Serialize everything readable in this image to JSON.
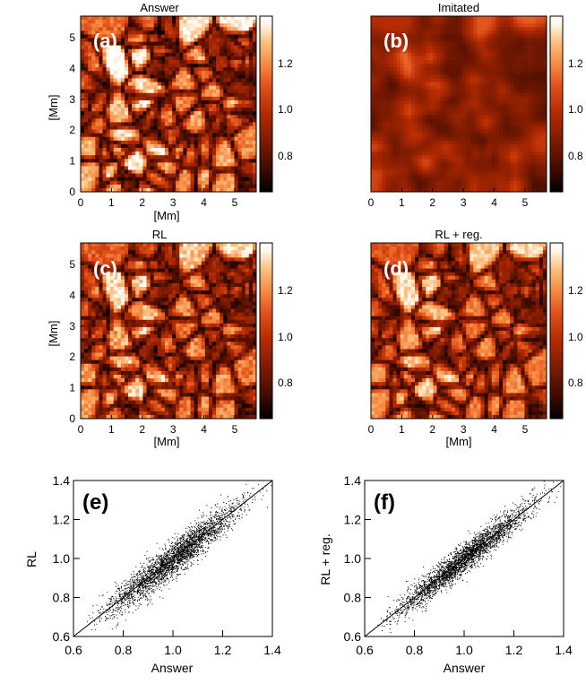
{
  "figure": {
    "panels": [
      {
        "letter": "(a)",
        "title": "Answer"
      },
      {
        "letter": "(b)",
        "title": "Imitated"
      },
      {
        "letter": "(c)",
        "title": "RL"
      },
      {
        "letter": "(d)",
        "title": "RL + reg."
      }
    ],
    "map_axis_label": "[Mm]",
    "map_x_ticks": [
      "0",
      "1",
      "2",
      "3",
      "4",
      "5"
    ],
    "map_y_ticks": [
      "0",
      "1",
      "2",
      "3",
      "4",
      "5"
    ],
    "colorbar_ticks": [
      "1.2",
      "1.0",
      "0.8"
    ],
    "scatter_panels": [
      {
        "letter": "(e)",
        "ylabel": "RL",
        "xlabel": "Answer"
      },
      {
        "letter": "(f)",
        "ylabel": "RL + reg.",
        "xlabel": "Answer"
      }
    ],
    "scatter_ticks": [
      "0.6",
      "0.8",
      "1.0",
      "1.2",
      "1.4"
    ]
  },
  "colors": {
    "cmap": [
      "#000000",
      "#3a0a00",
      "#7a1a00",
      "#b52b00",
      "#e0501a",
      "#f5883f",
      "#fbbf7e",
      "#fff5e6",
      "#ffffff"
    ],
    "point": "#000000"
  },
  "chart_data": [
    {
      "type": "heatmap",
      "title": "Answer",
      "xlabel": "[Mm]",
      "ylabel": "[Mm]",
      "xlim": [
        0,
        5.7
      ],
      "ylim": [
        0,
        5.7
      ],
      "colorbar_range": [
        0.65,
        1.4
      ],
      "colorbar_ticks": [
        0.8,
        1.0,
        1.2
      ],
      "description_level": "high-contrast granulation"
    },
    {
      "type": "heatmap",
      "title": "Imitated",
      "xlim": [
        0,
        5.7
      ],
      "ylim": [
        0,
        5.7
      ],
      "colorbar_range": [
        0.65,
        1.4
      ],
      "colorbar_ticks": [
        0.8,
        1.0,
        1.2
      ],
      "description_level": "blurred granulation"
    },
    {
      "type": "heatmap",
      "title": "RL",
      "xlabel": "[Mm]",
      "ylabel": "[Mm]",
      "xlim": [
        0,
        5.7
      ],
      "ylim": [
        0,
        5.7
      ],
      "colorbar_range": [
        0.65,
        1.4
      ],
      "colorbar_ticks": [
        0.8,
        1.0,
        1.2
      ],
      "description_level": "restored granulation"
    },
    {
      "type": "heatmap",
      "title": "RL + reg.",
      "xlabel": "[Mm]",
      "xlim": [
        0,
        5.7
      ],
      "ylim": [
        0,
        5.7
      ],
      "colorbar_range": [
        0.65,
        1.4
      ],
      "colorbar_ticks": [
        0.8,
        1.0,
        1.2
      ],
      "description_level": "restored granulation (regularized)"
    },
    {
      "type": "scatter",
      "title": "(e)",
      "xlabel": "Answer",
      "ylabel": "RL",
      "xlim": [
        0.6,
        1.4
      ],
      "ylim": [
        0.6,
        1.4
      ],
      "x_ticks": [
        0.6,
        0.8,
        1.0,
        1.2,
        1.4
      ],
      "y_ticks": [
        0.6,
        0.8,
        1.0,
        1.2,
        1.4
      ],
      "reference_line": {
        "from": [
          0.6,
          0.6
        ],
        "to": [
          1.4,
          1.4
        ]
      },
      "point_cloud": {
        "n": 3000,
        "x_mean": 1.0,
        "x_std": 0.13,
        "x_range": [
          0.65,
          1.4
        ],
        "slope": 1.0,
        "y_scatter_std": 0.045
      }
    },
    {
      "type": "scatter",
      "title": "(f)",
      "xlabel": "Answer",
      "ylabel": "RL + reg.",
      "xlim": [
        0.6,
        1.4
      ],
      "ylim": [
        0.6,
        1.4
      ],
      "x_ticks": [
        0.6,
        0.8,
        1.0,
        1.2,
        1.4
      ],
      "y_ticks": [
        0.6,
        0.8,
        1.0,
        1.2,
        1.4
      ],
      "reference_line": {
        "from": [
          0.6,
          0.6
        ],
        "to": [
          1.4,
          1.4
        ]
      },
      "point_cloud": {
        "n": 3000,
        "x_mean": 1.0,
        "x_std": 0.13,
        "x_range": [
          0.65,
          1.4
        ],
        "slope": 1.0,
        "y_scatter_std": 0.037
      }
    }
  ]
}
